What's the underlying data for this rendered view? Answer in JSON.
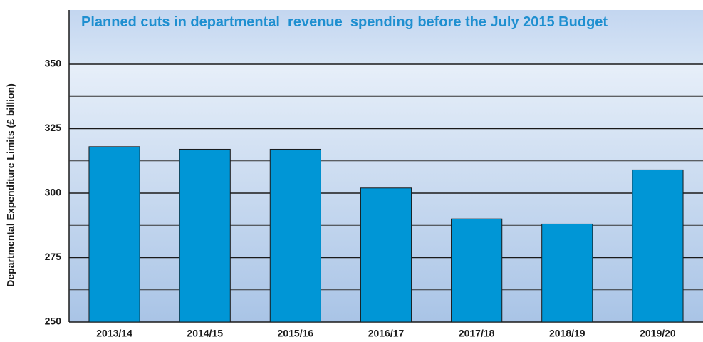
{
  "chart_data": {
    "type": "bar",
    "title": "Planned cuts in departmental  revenue  spending before the July 2015 Budget",
    "y_label": "Departmental Expenditure Limits (£ billion)",
    "categories": [
      "2013/14",
      "2014/15",
      "2015/16",
      "2016/17",
      "2017/18",
      "2018/19",
      "2019/20"
    ],
    "values": [
      318,
      317,
      317,
      302,
      290,
      288,
      309
    ],
    "color": "#0096d6",
    "ylim": [
      250,
      371
    ],
    "yticks": [
      250,
      275,
      300,
      325,
      350
    ],
    "minor_grid": [
      262.5,
      287.5,
      312.5,
      337.5
    ],
    "grid": true
  }
}
